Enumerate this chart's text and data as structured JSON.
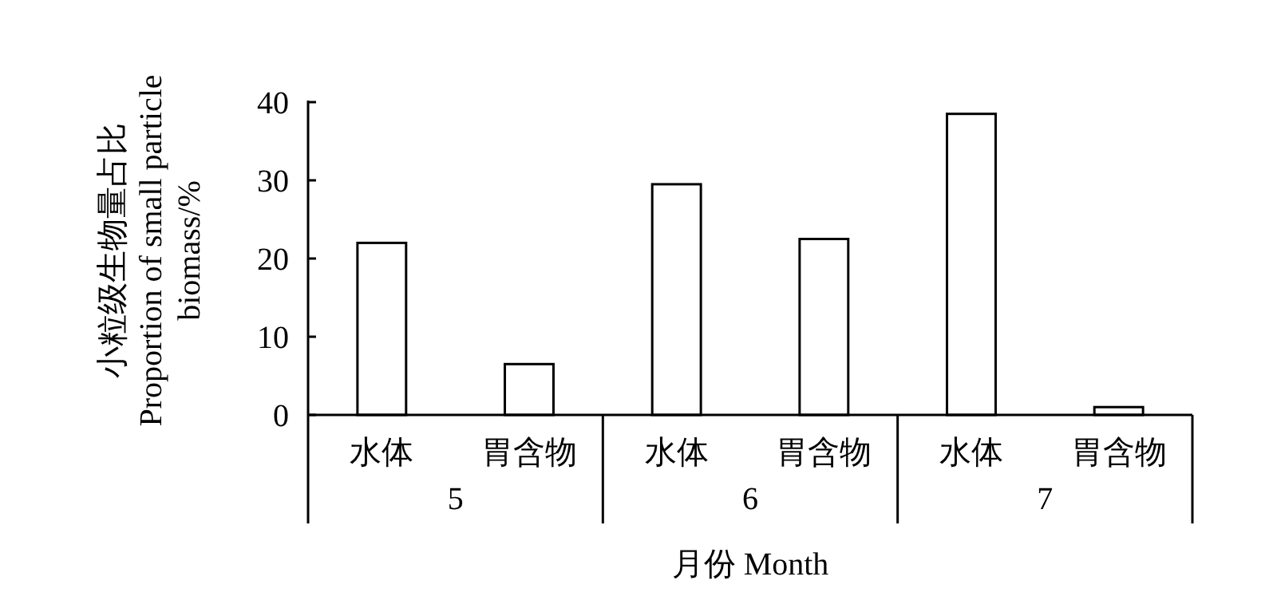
{
  "chart_data": {
    "type": "bar",
    "xlabel": "月份 Month",
    "ylabel": "小粒级生物量占比\nProportion of small particle\nbiomass/%",
    "categories": [
      "水体",
      "胃含物",
      "水体",
      "胃含物",
      "水体",
      "胃含物"
    ],
    "values": [
      22,
      6.5,
      29.5,
      22.5,
      38.5,
      1
    ],
    "color": "#ffffff",
    "ylim": [
      0,
      40
    ],
    "yticks": [
      0,
      10,
      20,
      30,
      40
    ],
    "annotations": [
      "5",
      "6",
      "7"
    ]
  }
}
